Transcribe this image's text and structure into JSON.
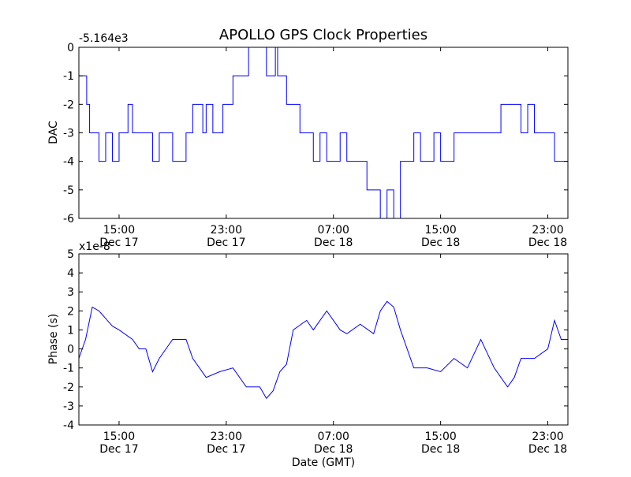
{
  "figure": {
    "title": "APOLLO GPS Clock Properties"
  },
  "chart_data": [
    {
      "type": "line",
      "title": "APOLLO GPS Clock Properties",
      "xlabel": "",
      "ylabel": "DAC",
      "offset_label": "-5.164e3",
      "ylim": [
        -6,
        0
      ],
      "yticks": [
        "0",
        "-1",
        "-2",
        "-3",
        "-4",
        "-5",
        "-6"
      ],
      "ytick_values": [
        0,
        -1,
        -2,
        -3,
        -4,
        -5,
        -6
      ],
      "xlim": [
        "2011-12-17 12:00",
        "2011-12-19 00:30"
      ],
      "xticks": [
        {
          "time": "2011-12-17 15:00",
          "label1": "15:00",
          "label2": "Dec 17"
        },
        {
          "time": "2011-12-17 23:00",
          "label1": "23:00",
          "label2": "Dec 17"
        },
        {
          "time": "2011-12-18 07:00",
          "label1": "07:00",
          "label2": "Dec 18"
        },
        {
          "time": "2011-12-18 15:00",
          "label1": "15:00",
          "label2": "Dec 18"
        },
        {
          "time": "2011-12-18 23:00",
          "label1": "23:00",
          "label2": "Dec 18"
        }
      ],
      "grid": false,
      "series": [
        {
          "color": "#0000ff",
          "x": [
            "2011-12-17 12:00",
            "2011-12-17 12:15",
            "2011-12-17 12:35",
            "2011-12-17 12:48",
            "2011-12-17 13:00",
            "2011-12-17 13:30",
            "2011-12-17 14:00",
            "2011-12-17 14:30",
            "2011-12-17 15:00",
            "2011-12-17 15:40",
            "2011-12-17 16:00",
            "2011-12-17 17:30",
            "2011-12-17 18:00",
            "2011-12-17 18:30",
            "2011-12-17 19:00",
            "2011-12-17 20:00",
            "2011-12-17 20:30",
            "2011-12-17 21:00",
            "2011-12-17 21:15",
            "2011-12-17 21:30",
            "2011-12-17 22:00",
            "2011-12-17 22:45",
            "2011-12-17 23:30",
            "2011-12-17 23:45",
            "2011-12-18 00:30",
            "2011-12-18 00:40",
            "2011-12-18 01:20",
            "2011-12-18 02:00",
            "2011-12-18 02:30",
            "2011-12-18 02:40",
            "2011-12-18 02:50",
            "2011-12-18 03:10",
            "2011-12-18 03:30",
            "2011-12-18 04:00",
            "2011-12-18 04:30",
            "2011-12-18 05:00",
            "2011-12-18 05:30",
            "2011-12-18 06:00",
            "2011-12-18 06:30",
            "2011-12-18 07:30",
            "2011-12-18 08:00",
            "2011-12-18 09:00",
            "2011-12-18 09:30",
            "2011-12-18 10:00",
            "2011-12-18 10:30",
            "2011-12-18 11:00",
            "2011-12-18 11:30",
            "2011-12-18 12:00",
            "2011-12-18 13:00",
            "2011-12-18 13:30",
            "2011-12-18 14:00",
            "2011-12-18 14:30",
            "2011-12-18 15:00",
            "2011-12-18 16:00",
            "2011-12-18 17:00",
            "2011-12-18 18:00",
            "2011-12-18 19:00",
            "2011-12-18 19:30",
            "2011-12-18 20:00",
            "2011-12-18 21:00",
            "2011-12-18 21:30",
            "2011-12-18 22:00",
            "2011-12-18 23:00",
            "2011-12-18 23:30",
            "2011-12-19 00:00",
            "2011-12-19 00:30"
          ],
          "y": [
            -1,
            -1,
            -2,
            -3,
            -3,
            -4,
            -3,
            -4,
            -3,
            -2,
            -3,
            -4,
            -3,
            -3,
            -4,
            -3,
            -2,
            -2,
            -3,
            -2,
            -3,
            -2,
            -1,
            -1,
            -1,
            0,
            0,
            -1,
            -1,
            0,
            -1,
            -1,
            -2,
            -2,
            -3,
            -3,
            -4,
            -3,
            -4,
            -3,
            -4,
            -4,
            -5,
            -5,
            -6,
            -5,
            -6,
            -4,
            -3,
            -4,
            -4,
            -3,
            -4,
            -3,
            -3,
            -3,
            -3,
            -2,
            -2,
            -3,
            -2,
            -3,
            -3,
            -4,
            -4,
            -3
          ]
        }
      ]
    },
    {
      "type": "line",
      "title": "",
      "xlabel": "Date (GMT)",
      "ylabel": "Phase (s)",
      "offset_label": "x1e-8",
      "ylim": [
        -4,
        5
      ],
      "yticks": [
        "5",
        "4",
        "3",
        "2",
        "1",
        "0",
        "-1",
        "-2",
        "-3",
        "-4"
      ],
      "ytick_values": [
        5,
        4,
        3,
        2,
        1,
        0,
        -1,
        -2,
        -3,
        -4
      ],
      "xlim": [
        "2011-12-17 12:00",
        "2011-12-19 00:30"
      ],
      "xticks": [
        {
          "time": "2011-12-17 15:00",
          "label1": "15:00",
          "label2": "Dec 17"
        },
        {
          "time": "2011-12-17 23:00",
          "label1": "23:00",
          "label2": "Dec 17"
        },
        {
          "time": "2011-12-18 07:00",
          "label1": "07:00",
          "label2": "Dec 18"
        },
        {
          "time": "2011-12-18 15:00",
          "label1": "15:00",
          "label2": "Dec 18"
        },
        {
          "time": "2011-12-18 23:00",
          "label1": "23:00",
          "label2": "Dec 18"
        }
      ],
      "grid": false,
      "series": [
        {
          "color": "#0000ff",
          "x": [
            "2011-12-17 12:00",
            "2011-12-17 12:30",
            "2011-12-17 13:00",
            "2011-12-17 13:30",
            "2011-12-17 14:00",
            "2011-12-17 14:30",
            "2011-12-17 15:00",
            "2011-12-17 16:00",
            "2011-12-17 16:30",
            "2011-12-17 17:00",
            "2011-12-17 17:30",
            "2011-12-17 18:00",
            "2011-12-17 19:00",
            "2011-12-17 20:00",
            "2011-12-17 20:30",
            "2011-12-17 21:30",
            "2011-12-17 22:30",
            "2011-12-17 23:30",
            "2011-12-18 00:30",
            "2011-12-18 01:30",
            "2011-12-18 02:00",
            "2011-12-18 02:30",
            "2011-12-18 03:00",
            "2011-12-18 03:30",
            "2011-12-18 04:00",
            "2011-12-18 05:00",
            "2011-12-18 05:30",
            "2011-12-18 06:30",
            "2011-12-18 07:30",
            "2011-12-18 08:00",
            "2011-12-18 09:00",
            "2011-12-18 10:00",
            "2011-12-18 10:30",
            "2011-12-18 11:00",
            "2011-12-18 11:30",
            "2011-12-18 12:00",
            "2011-12-18 13:00",
            "2011-12-18 14:00",
            "2011-12-18 15:00",
            "2011-12-18 16:00",
            "2011-12-18 17:00",
            "2011-12-18 18:00",
            "2011-12-18 19:00",
            "2011-12-18 20:00",
            "2011-12-18 20:30",
            "2011-12-18 21:00",
            "2011-12-18 22:00",
            "2011-12-18 23:00",
            "2011-12-18 23:30",
            "2011-12-19 00:00",
            "2011-12-19 00:30"
          ],
          "y": [
            -0.5,
            0.5,
            2.2,
            2.0,
            1.6,
            1.2,
            1.0,
            0.5,
            0,
            0,
            -1.2,
            -0.5,
            0.5,
            0.5,
            -0.5,
            -1.5,
            -1.2,
            -1.0,
            -2.0,
            -2.0,
            -2.6,
            -2.2,
            -1.2,
            -0.8,
            1.0,
            1.5,
            1.0,
            2.0,
            1.0,
            0.8,
            1.3,
            0.8,
            2.0,
            2.5,
            2.2,
            1.0,
            -1.0,
            -1.0,
            -1.2,
            -0.5,
            -1.0,
            0.5,
            -1.0,
            -2.0,
            -1.5,
            -0.5,
            -0.5,
            0,
            1.5,
            0.5,
            0.5
          ]
        }
      ]
    }
  ]
}
